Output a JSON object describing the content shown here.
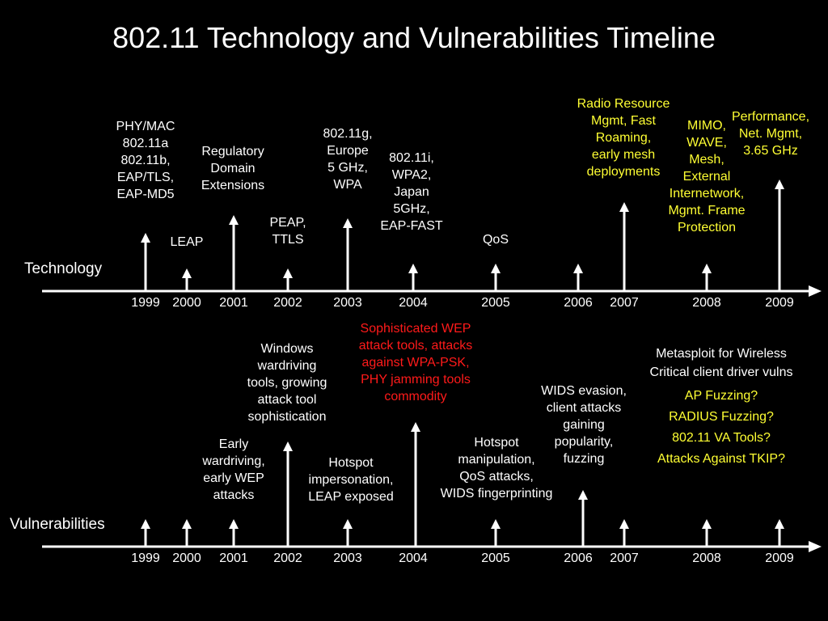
{
  "title": "802.11 Technology and Vulnerabilities Timeline",
  "colors": {
    "background": "#000000",
    "text": "#ffffff",
    "highlight": "#ffff33",
    "alert": "#ff1a1a"
  },
  "technology": {
    "section_label": "Technology",
    "years": [
      "1999",
      "2000",
      "2001",
      "2002",
      "2003",
      "2004",
      "2005",
      "2006",
      "2007",
      "2008",
      "2009"
    ],
    "events": [
      {
        "year": "1999",
        "text": "PHY/MAC\n802.11a\n802.11b,\nEAP/TLS,\nEAP-MD5",
        "color": "white"
      },
      {
        "year": "2000",
        "text": "LEAP",
        "color": "white"
      },
      {
        "year": "2001",
        "text": "Regulatory\nDomain\nExtensions",
        "color": "white"
      },
      {
        "year": "2002",
        "text": "PEAP,\nTTLS",
        "color": "white"
      },
      {
        "year": "2003",
        "text": "802.11g,\nEurope\n5 GHz,\nWPA",
        "color": "white"
      },
      {
        "year": "2004",
        "text": "802.11i,\nWPA2,\nJapan\n5GHz,\nEAP-FAST",
        "color": "white"
      },
      {
        "year": "2005",
        "text": "QoS",
        "color": "white"
      },
      {
        "year": "2007",
        "text": "Radio Resource\nMgmt, Fast\nRoaming,\nearly mesh\ndeployments",
        "color": "yellow"
      },
      {
        "year": "2008",
        "text": "MIMO,\nWAVE,\nMesh,\nExternal\nInternetwork,\nMgmt. Frame\nProtection",
        "color": "yellow"
      },
      {
        "year": "2009",
        "text": "Performance,\nNet. Mgmt,\n3.65 GHz",
        "color": "yellow"
      }
    ]
  },
  "vulnerabilities": {
    "section_label": "Vulnerabilities",
    "years": [
      "1999",
      "2000",
      "2001",
      "2002",
      "2003",
      "2004",
      "2005",
      "2006",
      "2007",
      "2008",
      "2009"
    ],
    "events": [
      {
        "year": "2001",
        "text": "Early\nwardriving,\nearly WEP\nattacks",
        "color": "white"
      },
      {
        "year": "2002",
        "text": "Windows\nwardriving\ntools, growing\nattack tool\nsophistication",
        "color": "white"
      },
      {
        "year": "2003",
        "text": "Hotspot\nimpersonation,\nLEAP exposed",
        "color": "white"
      },
      {
        "year": "2004",
        "text": "Sophisticated WEP\nattack tools, attacks\nagainst WPA-PSK,\nPHY jamming tools\ncommodity",
        "color": "red"
      },
      {
        "year": "2005",
        "text": "Hotspot\nmanipulation,\nQoS attacks,\nWIDS fingerprinting",
        "color": "white"
      },
      {
        "year": "2006",
        "text": "WIDS evasion,\nclient attacks\ngaining\npopularity,\nfuzzing",
        "color": "white"
      },
      {
        "year": "2008",
        "text": "Metasploit for Wireless\nCritical client driver vulns",
        "color": "white"
      },
      {
        "year": "2008",
        "text": "AP Fuzzing?\nRADIUS Fuzzing?\n802.11 VA Tools?\nAttacks Against TKIP?",
        "color": "yellow"
      }
    ]
  }
}
